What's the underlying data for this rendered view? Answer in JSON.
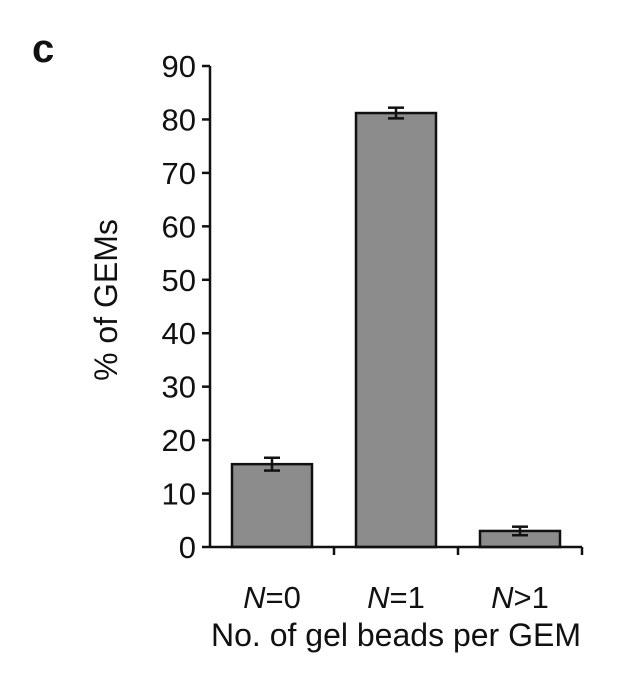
{
  "panel_label": "c",
  "chart_data": {
    "type": "bar",
    "categories": [
      {
        "var": "N",
        "rest": "=0"
      },
      {
        "var": "N",
        "rest": "=1"
      },
      {
        "var": "N",
        "rest": ">1"
      }
    ],
    "values": [
      15.5,
      81.2,
      3.0
    ],
    "errors": [
      1.2,
      1.0,
      0.8
    ],
    "title": "",
    "xlabel": "No. of gel beads per GEM",
    "ylabel": "% of GEMs",
    "ylim": [
      0,
      90
    ],
    "yticks": [
      0,
      10,
      20,
      30,
      40,
      50,
      60,
      70,
      80,
      90
    ],
    "grid": false,
    "colors": {
      "bar_fill": "#8c8c8c",
      "bar_stroke": "#111111"
    }
  }
}
